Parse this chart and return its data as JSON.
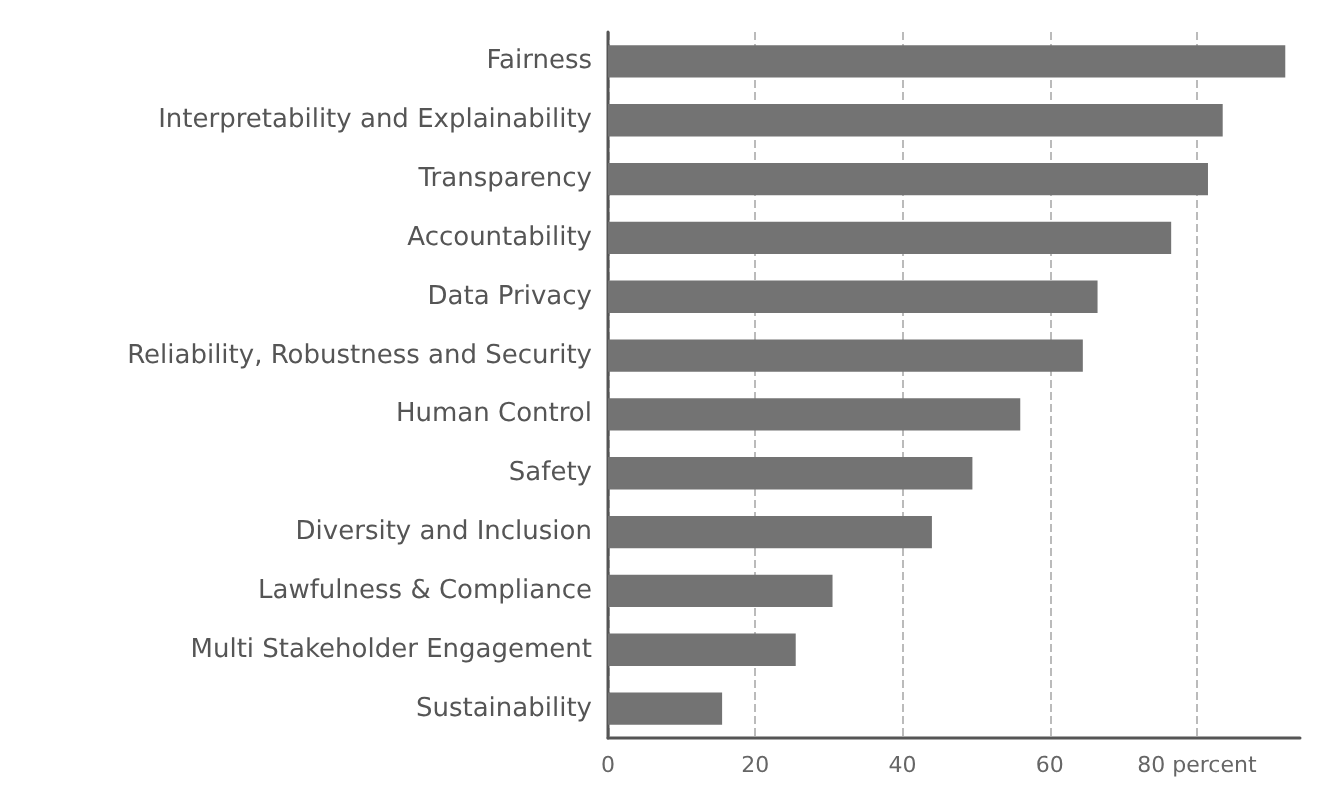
{
  "chart_data": {
    "type": "bar",
    "orientation": "horizontal",
    "categories": [
      "Fairness",
      "Interpretability and Explainability",
      "Transparency",
      "Accountability",
      "Data Privacy",
      "Reliability, Robustness and Security",
      "Human Control",
      "Safety",
      "Diversity and Inclusion",
      "Lawfulness & Compliance",
      "Multi Stakeholder Engagement",
      "Sustainability"
    ],
    "values": [
      92,
      83.5,
      81.5,
      76.5,
      66.5,
      64.5,
      56,
      49.5,
      44,
      30.5,
      25.5,
      15.5
    ],
    "color": "#737373",
    "xlim": [
      0,
      94
    ],
    "xticks": [
      0,
      20,
      40,
      60,
      {
        "value": 80,
        "label": "80 percent"
      }
    ],
    "grid": "x"
  }
}
